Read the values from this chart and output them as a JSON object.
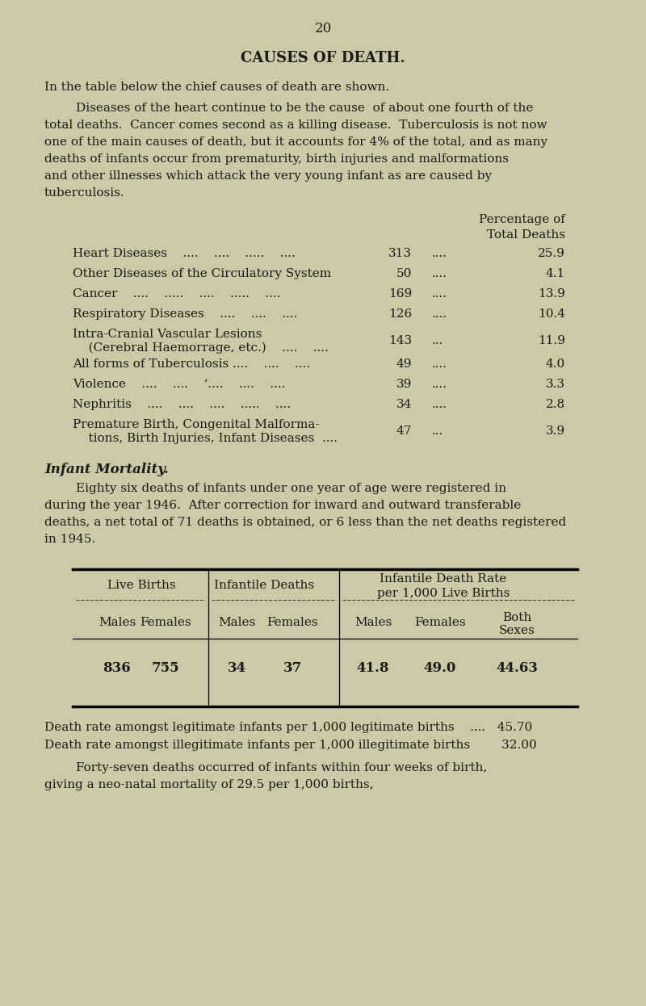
{
  "bg_color": "#cdc8a5",
  "text_color": "#1a1a1a",
  "page_number": "20",
  "title": "CAUSES OF DEATH.",
  "intro_line1": "In the table below the chief causes of death are shown.",
  "intro_lines": [
    "        Diseases of the heart continue to be the cause  of about one fourth of the",
    "total deaths.  Cancer comes second as a killing disease.  Tuberculosis is not now",
    "one of the main causes of death, but it accounts for 4% of the total, and as many",
    "deaths of infants occur from prematurity, birth injuries and malformations",
    "and other illnesses which attack the very young infant as are caused by",
    "tuberculosis."
  ],
  "col_header1": "Percentage of",
  "col_header2": "Total Deaths",
  "causes_data": [
    [
      "Heart Diseases    ....    ....    .....    ....",
      null,
      "313",
      "....",
      "25.9"
    ],
    [
      "Other Diseases of the Circulatory System",
      null,
      "50",
      "....",
      "4.1"
    ],
    [
      "Cancer    ....    .....    ....    .....    ....",
      null,
      "169",
      "....",
      "13.9"
    ],
    [
      "Respiratory Diseases    ....    ....    ....",
      null,
      "126",
      "....",
      "10.4"
    ],
    [
      "Intra-Cranial Vascular Lesions",
      "    (Cerebral Haemorrage, etc.)    ....    ....",
      "143",
      "...",
      "11.9"
    ],
    [
      "All forms of Tuberculosis ....    ....    ....",
      null,
      "49",
      "....",
      "4.0"
    ],
    [
      "Violence    ....    ....    ‘....    ....    ....",
      null,
      "39",
      "....",
      "3.3"
    ],
    [
      "Nephritis    ....    ....    ....    .....    ....",
      null,
      "34",
      "....",
      "2.8"
    ],
    [
      "Premature Birth, Congenital Malforma-",
      "    tions, Birth Injuries, Infant Diseases  ....",
      "47",
      "...",
      "3.9"
    ]
  ],
  "infant_title": "Infant Mortality.",
  "infant_lines": [
    "        Eighty six deaths of infants under one year of age were registered in",
    "during the year 1946.  After correction for inward and outward transferable",
    "deaths, a net total of 71 deaths is obtained, or 6 less than the net deaths registered",
    "in 1945."
  ],
  "table2_data": [
    "836",
    "755",
    "34",
    "37",
    "41.8",
    "49.0",
    "44.63"
  ],
  "legit_line1": "Death rate amongst legitimate infants per 1,000 legitimate births    ....   45.70",
  "legit_line2": "Death rate amongst illegitimate infants per 1,000 illegitimate births        32.00",
  "final_lines": [
    "        Forty-seven deaths occurred of infants within four weeks of birth,",
    "giving a neo-natal mortality of 29.5 per 1,000 births,"
  ]
}
